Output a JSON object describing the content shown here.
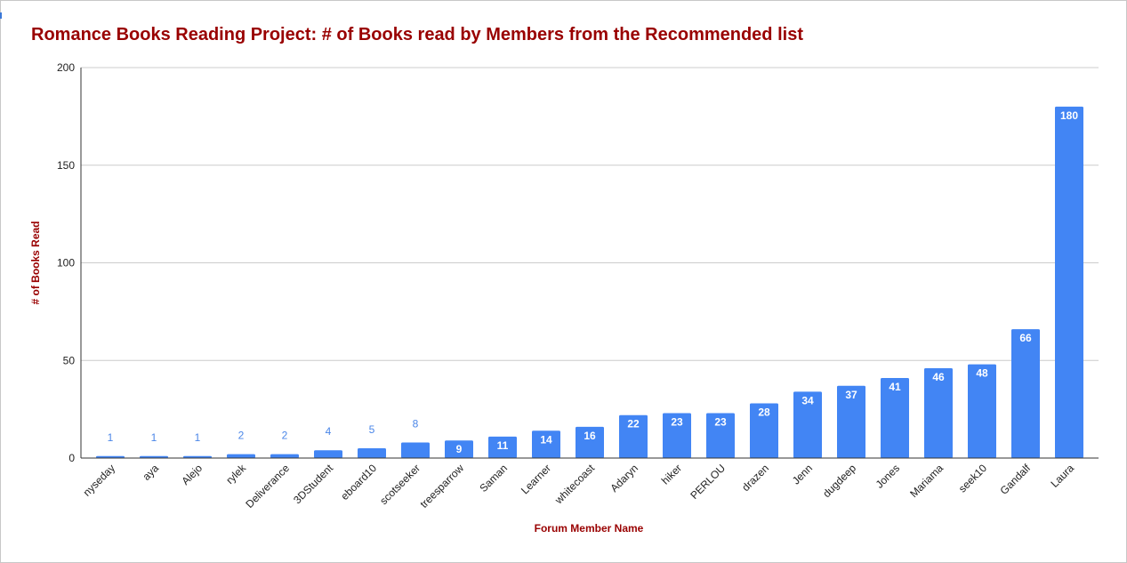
{
  "chart_data": {
    "type": "bar",
    "title": "Romance Books Reading Project: # of Books read by Members from the Recommended list",
    "xlabel": "Forum Member Name",
    "ylabel": "# of Books Read",
    "ylim": [
      0,
      200
    ],
    "yticks": [
      "0",
      "50",
      "100",
      "150",
      "200"
    ],
    "grid": true,
    "legend": "none",
    "bar_color": "#4285f4",
    "categories": [
      "nyseday",
      "aya",
      "Alejo",
      "rylek",
      "Deliverance",
      "3DStudent",
      "eboard10",
      "scotseeker",
      "treesparrow",
      "Saman",
      "Learner",
      "whitecoast",
      "Adaryn",
      "hiker",
      "PERLOU",
      "drazen",
      "Jenn",
      "dugdeep",
      "Jones",
      "Mariama",
      "seek10",
      "Gandalf",
      "Laura"
    ],
    "values": [
      1,
      1,
      1,
      2,
      2,
      4,
      5,
      8,
      9,
      11,
      14,
      16,
      22,
      23,
      23,
      28,
      34,
      37,
      41,
      46,
      48,
      66,
      180
    ]
  }
}
